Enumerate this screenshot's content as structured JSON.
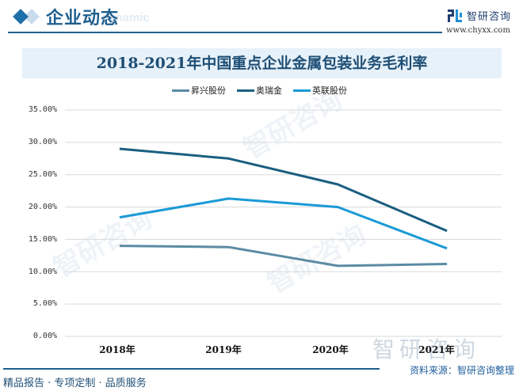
{
  "header": {
    "section_title": "企业动态",
    "section_subtitle": "dynamic",
    "brand_name": "智研咨询",
    "brand_url": "www.chyxx.com",
    "accent_color": "#1f5f8e"
  },
  "footer": {
    "tagline": "精品报告 · 专项定制 · 品质服务",
    "source": "资料来源：智研咨询整理",
    "watermark": "智研咨询"
  },
  "chart_data": {
    "type": "line",
    "title": "2018-2021年中国重点企业金属包装业务毛利率",
    "xlabel": "",
    "ylabel": "",
    "categories": [
      "2018年",
      "2019年",
      "2020年",
      "2021年"
    ],
    "y_ticks": [
      "0.00%",
      "5.00%",
      "10.00%",
      "15.00%",
      "20.00%",
      "25.00%",
      "30.00%",
      "35.00%"
    ],
    "ylim": [
      0,
      35
    ],
    "grid": true,
    "legend_position": "top",
    "series": [
      {
        "name": "昇兴股份",
        "color": "#5b8ba3",
        "values": [
          14.0,
          13.8,
          10.9,
          11.2
        ]
      },
      {
        "name": "奥瑞金",
        "color": "#1a5f80",
        "values": [
          29.0,
          27.5,
          23.5,
          16.3
        ]
      },
      {
        "name": "英联股份",
        "color": "#1a9ad6",
        "values": [
          18.4,
          21.3,
          20.0,
          13.6
        ]
      }
    ]
  }
}
